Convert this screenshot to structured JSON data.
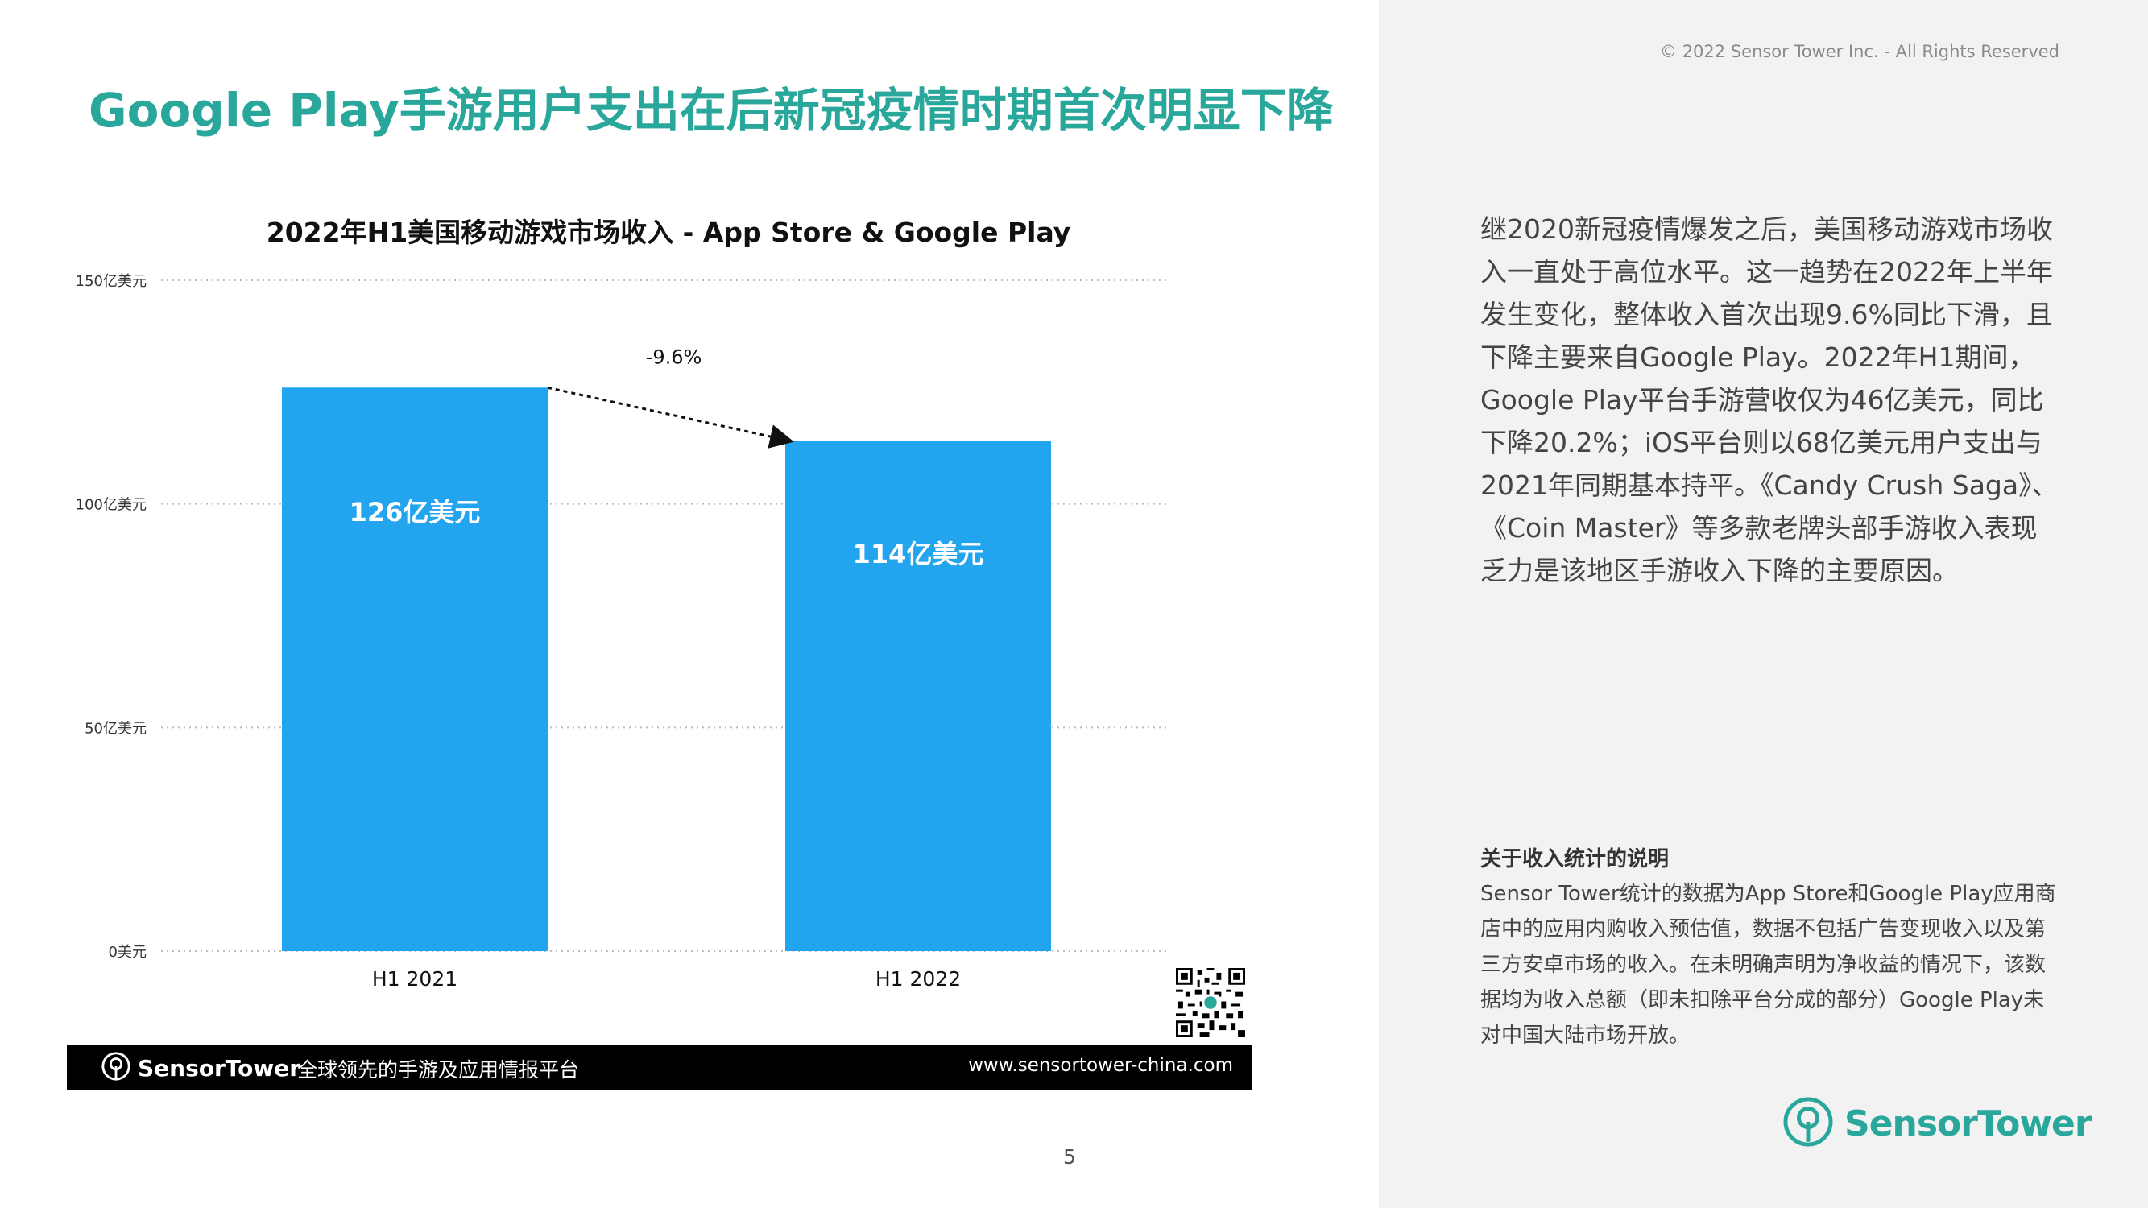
{
  "header": {
    "title": "Google Play手游用户支出在后新冠疫情时期首次明显下降",
    "copyright": "© 2022 Sensor Tower Inc. - All Rights Reserved"
  },
  "chart_data": {
    "type": "bar",
    "title": "2022年H1美国移动游戏市场收入 - App Store & Google Play",
    "categories": [
      "H1 2021",
      "H1 2022"
    ],
    "values": [
      126,
      114
    ],
    "data_labels": [
      "126亿美元",
      "114亿美元"
    ],
    "y_ticks": [
      0,
      50,
      100,
      150
    ],
    "y_tick_labels": [
      "0美元",
      "50亿美元",
      "100亿美元",
      "150亿美元"
    ],
    "ylim": [
      0,
      150
    ],
    "ylabel": "",
    "xlabel": "",
    "grid": true,
    "bar_color": "#22a4ef",
    "annotation": {
      "text": "-9.6%",
      "from": "H1 2021",
      "to": "H1 2022"
    }
  },
  "body": {
    "paragraph": "继2020新冠疫情爆发之后，美国移动游戏市场收入一直处于高位水平。这一趋势在2022年上半年发生变化，整体收入首次出现9.6%同比下滑，且下降主要来自Google Play。2022年H1期间，Google Play平台手游营收仅为46亿美元，同比下降20.2%；iOS平台则以68亿美元用户支出与2021年同期基本持平。《Candy Crush Saga》、《Coin Master》等多款老牌头部手游收入表现乏力是该地区手游收入下降的主要原因。"
  },
  "note": {
    "heading": "关于收入统计的说明",
    "text": "Sensor Tower统计的数据为App Store和Google Play应用商店中的应用内购收入预估值，数据不包括广告变现收入以及第三方安卓市场的收入。在未明确声明为净收益的情况下，该数据均为收入总额（即未扣除平台分成的部分）Google Play未对中国大陆市场开放。"
  },
  "brand": {
    "name": "SensorTower",
    "accent": "#2aa79b"
  },
  "footer": {
    "brand": "SensorTower",
    "slogan": "全球领先的手游及应用情报平台",
    "url": "www.sensortower-china.com"
  },
  "page_number": "5",
  "colors": {
    "title": "#2aa79b",
    "bar": "#22a4ef",
    "right_panel": "#f2f2f2"
  }
}
